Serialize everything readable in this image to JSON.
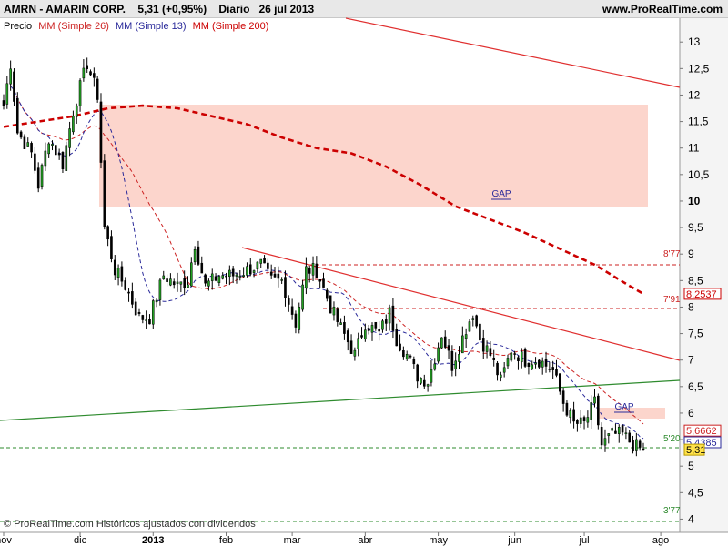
{
  "header": {
    "symbol": "AMRN - AMARIN CORP.",
    "price_change": "5,31 (+0,95%)",
    "period": "Diario",
    "date": "26 jul 2013",
    "site": "www.ProRealTime.com"
  },
  "legend": {
    "price": "Precio",
    "ma26": "MM (Simple 26)",
    "ma13": "MM (Simple 13)",
    "ma200": "MM (Simple 200)"
  },
  "footer_note": "© ProRealTime.com  Históricos ajustados con dividendos",
  "colors": {
    "up": "#22a022",
    "down": "#000000",
    "ma26": "#cc2222",
    "ma13": "#2a2a9a",
    "ma200": "#cc0000",
    "zone": "#fcd5cc",
    "trend_red": "#e03030",
    "trend_green": "#2e8b2e"
  },
  "chart_data": {
    "type": "candlestick",
    "y_ticks": [
      "4",
      "4,5",
      "5",
      "5,5",
      "6",
      "6,5",
      "7",
      "7,5",
      "8",
      "8,5",
      "9",
      "9,5",
      "10",
      "10,5",
      "11",
      "11,5",
      "12",
      "12,5",
      "13"
    ],
    "ylim": [
      3.75,
      13.45
    ],
    "x_labels": [
      {
        "label": "nov",
        "day": 0
      },
      {
        "label": "dic",
        "day": 22
      },
      {
        "label": "2013",
        "day": 43
      },
      {
        "label": "feb",
        "day": 64
      },
      {
        "label": "mar",
        "day": 83
      },
      {
        "label": "abr",
        "day": 104
      },
      {
        "label": "may",
        "day": 125
      },
      {
        "label": "jun",
        "day": 147
      },
      {
        "label": "jul",
        "day": 167
      },
      {
        "label": "ago",
        "day": 189
      }
    ],
    "last_day": 184,
    "anchors": [
      [
        0,
        11.8
      ],
      [
        2,
        12.6
      ],
      [
        4,
        11.3
      ],
      [
        8,
        10.9
      ],
      [
        10,
        10.3
      ],
      [
        13,
        11.2
      ],
      [
        17,
        10.7
      ],
      [
        20,
        11.7
      ],
      [
        24,
        12.6
      ],
      [
        27,
        12.0
      ],
      [
        29,
        9.5
      ],
      [
        32,
        8.7
      ],
      [
        35,
        8.4
      ],
      [
        39,
        7.8
      ],
      [
        42,
        7.8
      ],
      [
        46,
        8.6
      ],
      [
        50,
        8.4
      ],
      [
        53,
        8.5
      ],
      [
        55,
        9.2
      ],
      [
        58,
        8.4
      ],
      [
        62,
        8.6
      ],
      [
        66,
        8.6
      ],
      [
        70,
        8.7
      ],
      [
        74,
        8.8
      ],
      [
        77,
        8.5
      ],
      [
        80,
        8.5
      ],
      [
        84,
        7.7
      ],
      [
        87,
        8.7
      ],
      [
        90,
        8.7
      ],
      [
        94,
        8.0
      ],
      [
        97,
        7.6
      ],
      [
        101,
        7.1
      ],
      [
        104,
        7.7
      ],
      [
        108,
        7.5
      ],
      [
        111,
        7.9
      ],
      [
        113,
        7.4
      ],
      [
        116,
        7.1
      ],
      [
        119,
        6.7
      ],
      [
        122,
        6.6
      ],
      [
        126,
        7.5
      ],
      [
        129,
        6.9
      ],
      [
        133,
        7.6
      ],
      [
        135,
        7.9
      ],
      [
        137,
        7.4
      ],
      [
        140,
        7.1
      ],
      [
        143,
        6.6
      ],
      [
        146,
        7.2
      ],
      [
        150,
        7.0
      ],
      [
        154,
        7.0
      ],
      [
        158,
        6.8
      ],
      [
        161,
        6.2
      ],
      [
        164,
        5.8
      ],
      [
        167,
        5.8
      ],
      [
        170,
        6.2
      ],
      [
        172,
        5.4
      ],
      [
        175,
        5.6
      ],
      [
        178,
        5.6
      ],
      [
        181,
        5.4
      ],
      [
        184,
        5.31
      ]
    ],
    "overlays": {
      "ma200": [
        [
          0,
          11.4
        ],
        [
          10,
          11.5
        ],
        [
          20,
          11.6
        ],
        [
          30,
          11.75
        ],
        [
          40,
          11.8
        ],
        [
          50,
          11.75
        ],
        [
          60,
          11.6
        ],
        [
          70,
          11.45
        ],
        [
          80,
          11.2
        ],
        [
          90,
          11.0
        ],
        [
          100,
          10.9
        ],
        [
          110,
          10.65
        ],
        [
          120,
          10.3
        ],
        [
          130,
          9.9
        ],
        [
          140,
          9.65
        ],
        [
          150,
          9.4
        ],
        [
          160,
          9.1
        ],
        [
          170,
          8.8
        ],
        [
          180,
          8.4
        ],
        [
          184,
          8.25
        ]
      ],
      "labels": [
        {
          "text": "GAP",
          "x": 551,
          "y": 216,
          "color": "#2a2a9a"
        },
        {
          "text": "GAP",
          "x": 686,
          "y": 450,
          "color": "#2a2a9a"
        },
        {
          "text": "8'77",
          "x": 729,
          "y": 282,
          "color": "#cc2222"
        },
        {
          "text": "7'91",
          "x": 729,
          "y": 332,
          "color": "#cc2222"
        },
        {
          "text": "5'20",
          "x": 729,
          "y": 485,
          "color": "#2e8b2e"
        },
        {
          "text": "3'77",
          "x": 729,
          "y": 564,
          "color": "#2e8b2e"
        }
      ],
      "axis_badges": [
        {
          "text": "8,2537",
          "value": 8.25,
          "bg": "#ffffff",
          "border": "#cc0000",
          "color": "#cc0000"
        },
        {
          "text": "5,6662",
          "value": 5.67,
          "bg": "#ffffff",
          "border": "#cc2222",
          "color": "#cc2222"
        },
        {
          "text": "5,4385",
          "value": 5.45,
          "bg": "#ffffff",
          "border": "#2a2a9a",
          "color": "#2a2a9a"
        },
        {
          "text": "5,31",
          "value": 5.31,
          "bg": "#ffe24a",
          "border": "#b89a00",
          "color": "#000000"
        }
      ]
    }
  }
}
